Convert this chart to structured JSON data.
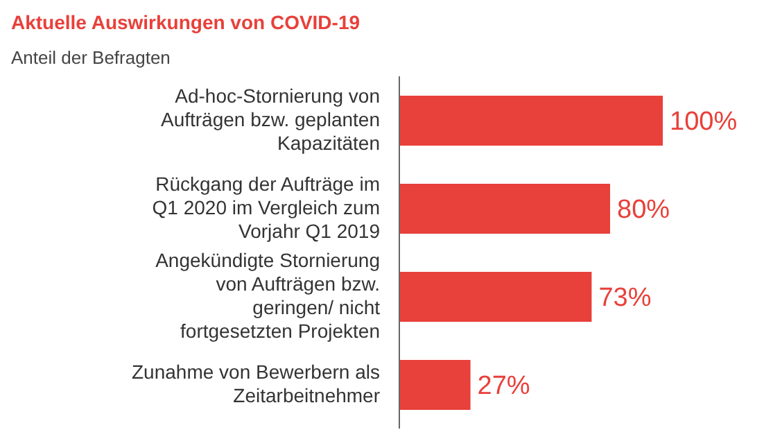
{
  "chart_data": {
    "type": "bar",
    "orientation": "horizontal",
    "title": "Aktuelle Auswirkungen von COVID-19",
    "subtitle": "Anteil der Befragten",
    "categories": [
      "Ad-hoc-Stornierung von Aufträgen bzw. geplanten Kapazitäten",
      "Rückgang der Aufträge im Q1 2020 im Vergleich zum Vorjahr Q1 2019",
      "Angekündigte Stornierung von Aufträgen bzw. geringen/ nicht fortgesetzten Projekten",
      "Zunahme von Bewerbern als Zeitarbeitnehmer"
    ],
    "values": [
      100,
      80,
      73,
      27
    ],
    "value_labels": [
      "100%",
      "80%",
      "73%",
      "27%"
    ],
    "color": "#e8403a",
    "xlim": [
      0,
      100
    ],
    "grid": false,
    "legend": false
  }
}
